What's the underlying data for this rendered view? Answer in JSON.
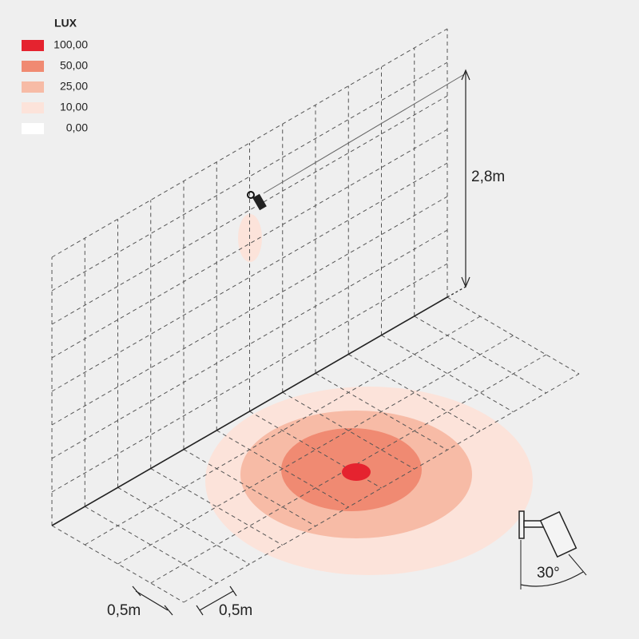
{
  "legend": {
    "title": "LUX",
    "items": [
      {
        "label": "100,00",
        "color": "#e5232f"
      },
      {
        "label": "50,00",
        "color": "#f08a72"
      },
      {
        "label": "25,00",
        "color": "#f7bba6"
      },
      {
        "label": "10,00",
        "color": "#fce3da"
      },
      {
        "label": "0,00",
        "color": "#ffffff"
      }
    ]
  },
  "dimensions": {
    "height": "2,8m",
    "grid_x": "0,5m",
    "grid_y": "0,5m",
    "beam_angle": "30°"
  }
}
